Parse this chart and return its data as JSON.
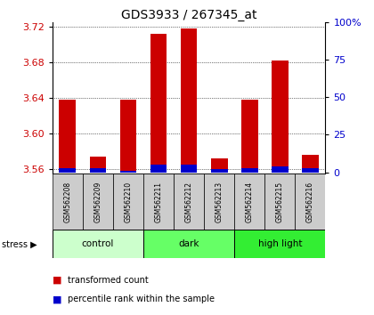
{
  "title": "GDS3933 / 267345_at",
  "samples": [
    "GSM562208",
    "GSM562209",
    "GSM562210",
    "GSM562211",
    "GSM562212",
    "GSM562213",
    "GSM562214",
    "GSM562215",
    "GSM562216"
  ],
  "transformed_counts": [
    3.638,
    3.574,
    3.638,
    3.712,
    3.718,
    3.572,
    3.638,
    3.682,
    3.576
  ],
  "percentile_ranks": [
    3,
    3,
    1,
    5,
    5,
    2,
    3,
    4,
    3
  ],
  "percentile_scale": [
    0,
    25,
    50,
    75,
    100
  ],
  "ylim_left": [
    3.555,
    3.725
  ],
  "yticks_left": [
    3.56,
    3.6,
    3.64,
    3.68,
    3.72
  ],
  "groups": [
    {
      "label": "control",
      "start": 0,
      "end": 3,
      "color": "#ccffcc"
    },
    {
      "label": "dark",
      "start": 3,
      "end": 6,
      "color": "#66ff66"
    },
    {
      "label": "high light",
      "start": 6,
      "end": 9,
      "color": "#33ee33"
    }
  ],
  "bar_color_red": "#cc0000",
  "bar_color_blue": "#0000cc",
  "baseline": 3.556,
  "bar_width": 0.55,
  "tick_color_left": "#cc0000",
  "tick_color_right": "#0000cc",
  "sample_bg_color": "#cccccc",
  "stress_label": "stress"
}
